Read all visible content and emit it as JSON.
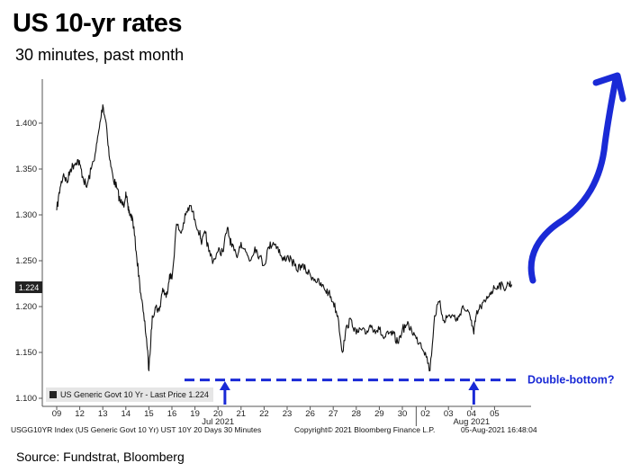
{
  "title": "US 10-yr rates",
  "subtitle": "30 minutes, past month",
  "source": "Source: Fundstrat, Bloomberg",
  "colors": {
    "line": "#111111",
    "annotation": "#1a2ad6",
    "plot_bg": "#ffffff",
    "legend_bg": "#e6e6e6"
  },
  "chart_data": {
    "type": "line",
    "title": "US 10-yr rates",
    "subtitle": "30 minutes, past month",
    "ylim": [
      1.1,
      1.45
    ],
    "y_ticks": [
      "1.100",
      "1.150",
      "1.200",
      "1.250",
      "1.300",
      "1.350",
      "1.400"
    ],
    "x_ticks": [
      "09",
      "12",
      "13",
      "14",
      "15",
      "16",
      "19",
      "20",
      "21",
      "22",
      "23",
      "26",
      "27",
      "28",
      "29",
      "30",
      "02",
      "03",
      "04",
      "05"
    ],
    "month_labels": [
      "Jul 2021",
      "Aug 2021"
    ],
    "last_price_label": "1.224",
    "legend": "US Generic Govt 10 Yr - Last Price 1.224",
    "series": [
      {
        "name": "US Generic Govt 10 Yr",
        "x": [
          0,
          0.15,
          0.3,
          0.45,
          0.6,
          0.75,
          0.9,
          1.0,
          1.15,
          1.3,
          1.5,
          1.7,
          1.85,
          2.0,
          2.15,
          2.3,
          2.45,
          2.6,
          2.75,
          2.9,
          3.0,
          3.1,
          3.2,
          3.3,
          3.45,
          3.6,
          3.75,
          3.9,
          4.0,
          4.15,
          4.3,
          4.45,
          4.6,
          4.75,
          4.9,
          5.0,
          5.2,
          5.4,
          5.6,
          5.8,
          6.0,
          6.2,
          6.3,
          6.45,
          6.6,
          6.8,
          7.0,
          7.2,
          7.4,
          7.5,
          7.6,
          7.8,
          8.0,
          8.2,
          8.4,
          8.6,
          8.8,
          9.0,
          9.2,
          9.4,
          9.6,
          9.8,
          10.0,
          10.2,
          10.4,
          10.6,
          10.8,
          11.0,
          11.2,
          11.4,
          11.6,
          11.8,
          12.0,
          12.2,
          12.4,
          12.6,
          12.8,
          13.0,
          13.2,
          13.4,
          13.6,
          13.8,
          14.0,
          14.2,
          14.4,
          14.6,
          14.8,
          15.0,
          15.2,
          15.4,
          15.6,
          15.8,
          16.0,
          16.2,
          16.4,
          16.6,
          16.8,
          17.0,
          17.2,
          17.4,
          17.6,
          17.8,
          18.0,
          18.1,
          18.2,
          18.4,
          18.6,
          18.8,
          19.0,
          19.2,
          19.4,
          19.6,
          19.75
        ],
        "values": [
          1.305,
          1.33,
          1.345,
          1.335,
          1.35,
          1.355,
          1.36,
          1.355,
          1.34,
          1.33,
          1.35,
          1.37,
          1.395,
          1.42,
          1.4,
          1.36,
          1.34,
          1.33,
          1.315,
          1.31,
          1.325,
          1.305,
          1.3,
          1.295,
          1.26,
          1.225,
          1.195,
          1.165,
          1.13,
          1.19,
          1.2,
          1.195,
          1.22,
          1.21,
          1.235,
          1.23,
          1.29,
          1.28,
          1.3,
          1.31,
          1.295,
          1.28,
          1.27,
          1.28,
          1.26,
          1.25,
          1.26,
          1.26,
          1.285,
          1.275,
          1.265,
          1.255,
          1.27,
          1.26,
          1.25,
          1.265,
          1.255,
          1.245,
          1.265,
          1.27,
          1.265,
          1.25,
          1.255,
          1.25,
          1.24,
          1.245,
          1.24,
          1.235,
          1.23,
          1.225,
          1.22,
          1.215,
          1.205,
          1.19,
          1.15,
          1.18,
          1.185,
          1.17,
          1.175,
          1.17,
          1.18,
          1.175,
          1.175,
          1.165,
          1.17,
          1.17,
          1.16,
          1.175,
          1.18,
          1.175,
          1.165,
          1.16,
          1.15,
          1.13,
          1.19,
          1.205,
          1.185,
          1.19,
          1.19,
          1.185,
          1.2,
          1.195,
          1.185,
          1.17,
          1.19,
          1.2,
          1.205,
          1.215,
          1.22,
          1.225,
          1.22,
          1.225,
          1.224
        ]
      }
    ],
    "annotations": [
      {
        "text": "Double-bottom?",
        "type": "support-line",
        "y": 1.12
      },
      {
        "type": "up-arrow",
        "x": 7.3
      },
      {
        "type": "up-arrow",
        "x": 18.1
      }
    ],
    "footer_left": "USGG10YR Index (US Generic Govt 10 Yr) UST 10Y 20 Days 30 Minutes",
    "footer_mid": "Copyright© 2021 Bloomberg Finance L.P.",
    "footer_right": "05-Aug-2021 16:48:04",
    "grid": false
  }
}
